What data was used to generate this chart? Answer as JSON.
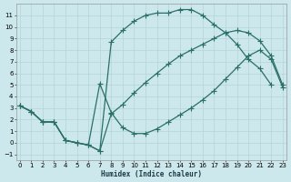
{
  "xlabel": "Humidex (Indice chaleur)",
  "bg_color": "#cce8ec",
  "grid_color": "#b5d5d8",
  "line_color": "#2a7068",
  "markersize": 2.5,
  "linewidth": 0.9,
  "xlim": [
    -0.3,
    23.3
  ],
  "ylim": [
    -1.5,
    12.0
  ],
  "yticks": [
    -1,
    0,
    1,
    2,
    3,
    4,
    5,
    6,
    7,
    8,
    9,
    10,
    11
  ],
  "xticks": [
    0,
    1,
    2,
    3,
    4,
    5,
    6,
    7,
    8,
    9,
    10,
    11,
    12,
    13,
    14,
    15,
    16,
    17,
    18,
    19,
    20,
    21,
    22,
    23
  ],
  "curve1_x": [
    0,
    1,
    2,
    3,
    4,
    5,
    6,
    7,
    8,
    9,
    10,
    11,
    12,
    13,
    14,
    15,
    16,
    17,
    18,
    19,
    20,
    21,
    22
  ],
  "curve1_y": [
    3.2,
    2.7,
    1.8,
    1.8,
    0.2,
    0.0,
    -0.2,
    -0.7,
    8.7,
    9.7,
    10.5,
    11.0,
    11.2,
    11.2,
    11.5,
    11.5,
    11.0,
    10.2,
    9.5,
    8.5,
    7.2,
    6.4,
    5.0
  ],
  "curve2_x": [
    0,
    1,
    2,
    3,
    4,
    5,
    6,
    7,
    8,
    9,
    10,
    11,
    12,
    13,
    14,
    15,
    16,
    17,
    18,
    19,
    20,
    21,
    22,
    23
  ],
  "curve2_y": [
    3.2,
    2.7,
    1.8,
    1.8,
    0.2,
    0.0,
    -0.2,
    5.1,
    2.6,
    1.3,
    0.8,
    0.8,
    1.2,
    1.8,
    2.4,
    3.0,
    3.7,
    4.5,
    5.5,
    6.5,
    7.5,
    8.0,
    7.2,
    4.8
  ],
  "curve3_x": [
    0,
    1,
    2,
    3,
    4,
    5,
    6,
    7,
    8,
    9,
    10,
    11,
    12,
    13,
    14,
    15,
    16,
    17,
    18,
    19,
    20,
    21,
    22,
    23
  ],
  "curve3_y": [
    3.2,
    2.7,
    1.8,
    1.8,
    0.2,
    0.0,
    -0.2,
    -0.7,
    2.5,
    3.3,
    4.3,
    5.2,
    6.0,
    6.8,
    7.5,
    8.0,
    8.5,
    9.0,
    9.5,
    9.7,
    9.5,
    8.8,
    7.5,
    5.0
  ]
}
